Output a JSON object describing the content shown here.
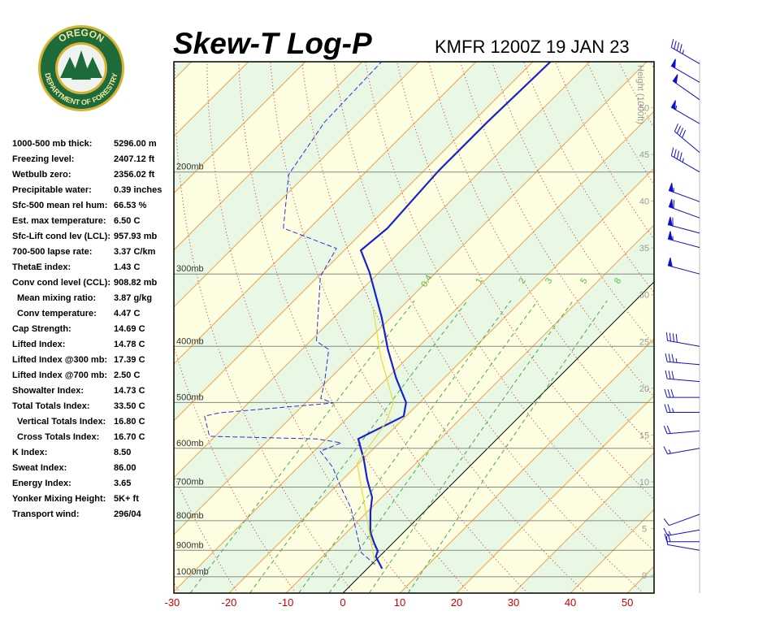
{
  "logo": {
    "top": "OREGON",
    "bottom": "DEPARTMENT OF FORESTRY"
  },
  "stats": [
    {
      "label": "1000-500 mb thick:",
      "value": "5296.00 m"
    },
    {
      "label": "Freezing level:",
      "value": "2407.12 ft"
    },
    {
      "label": "Wetbulb zero:",
      "value": "2356.02 ft"
    },
    {
      "label": "Precipitable water:",
      "value": "0.39 inches"
    },
    {
      "label": "Sfc-500 mean rel hum:",
      "value": "66.53 %"
    },
    {
      "label": "Est. max temperature:",
      "value": "6.50 C"
    },
    {
      "label": "Sfc-Lift cond lev (LCL):",
      "value": "957.93 mb"
    },
    {
      "label": "700-500 lapse rate:",
      "value": "3.37 C/km"
    },
    {
      "label": "ThetaE index:",
      "value": "1.43 C"
    },
    {
      "label": "Conv cond level (CCL):",
      "value": "908.82 mb"
    },
    {
      "label": "Mean mixing ratio:",
      "value": "3.87 g/kg"
    },
    {
      "label": "Conv temperature:",
      "value": "4.47 C"
    },
    {
      "label": "Cap Strength:",
      "value": "14.69 C"
    },
    {
      "label": "Lifted Index:",
      "value": "14.78 C"
    },
    {
      "label": "Lifted Index @300 mb:",
      "value": "17.39 C"
    },
    {
      "label": "Lifted Index @700 mb:",
      "value": "2.50 C"
    },
    {
      "label": "Showalter Index:",
      "value": "14.73 C"
    },
    {
      "label": "Total Totals Index:",
      "value": "33.50 C"
    },
    {
      "label": "Vertical Totals Index:",
      "value": "16.80 C"
    },
    {
      "label": "Cross Totals Index:",
      "value": "16.70 C"
    },
    {
      "label": "K Index:",
      "value": "8.50"
    },
    {
      "label": "Sweat Index:",
      "value": "86.00"
    },
    {
      "label": "Energy Index:",
      "value": "3.65"
    },
    {
      "label": "Yonker Mixing Height:",
      "value": "5K+ ft"
    },
    {
      "label": "Transport wind:",
      "value": "296/04"
    }
  ],
  "chart_data": {
    "type": "skewt",
    "title": "Skew-T Log-P",
    "subtitle": "KMFR 1200Z 19 JAN 23",
    "xlim": [
      -29.7,
      54.7
    ],
    "xticks": [
      -30,
      -20,
      -10,
      0,
      10,
      20,
      30,
      40,
      50
    ],
    "ylim": [
      1067,
      129
    ],
    "yticks": [
      {
        "value": 1000,
        "label": "1000mb"
      },
      {
        "value": 900,
        "label": "900mb"
      },
      {
        "value": 800,
        "label": "800mb"
      },
      {
        "value": 700,
        "label": "700mb"
      },
      {
        "value": 600,
        "label": "600mb"
      },
      {
        "value": 500,
        "label": "500mb"
      },
      {
        "value": 400,
        "label": "400mb"
      },
      {
        "value": 300,
        "label": "300mb"
      },
      {
        "value": 200,
        "label": "200mb"
      }
    ],
    "height_axis": {
      "label": "Height (1000ft)",
      "lim": [
        -1.9,
        54.9
      ],
      "ticks": [
        0,
        5,
        10,
        15,
        20,
        25,
        30,
        35,
        40,
        45,
        50
      ]
    },
    "mixing_ratio_lines": [
      0.4,
      1,
      2,
      3,
      5,
      8
    ],
    "series": [
      {
        "color": "#1a22cc",
        "style": "solid",
        "pressure": [
          968,
          923,
          902,
          873,
          837,
          773,
          729,
          679,
          626,
          578,
          528,
          500,
          454,
          405,
          356,
          298,
          273,
          250,
          199,
          164,
          129
        ],
        "values": [
          2.6,
          -0.6,
          -1.3,
          -3.4,
          -5.9,
          -9.4,
          -11.7,
          -15.7,
          -19.9,
          -24.4,
          -20.4,
          -22.4,
          -28.4,
          -34.9,
          -41.7,
          -51.7,
          -57.1,
          -56.3,
          -57.4,
          -57.4,
          -56.9
        ]
      },
      {
        "color": "#2a30d8",
        "style": "dashed",
        "pressure": [
          953,
          908,
          760,
          701,
          647,
          607,
          587,
          578,
          572,
          528,
          521,
          501,
          492,
          461,
          405,
          392,
          303,
          271,
          250,
          202,
          164,
          129
        ],
        "values": [
          0.7,
          -3.9,
          -13.6,
          -18.9,
          -23.9,
          -28.9,
          -26.7,
          -31.7,
          -51,
          -55.4,
          -53.4,
          -35.1,
          -38.1,
          -40.3,
          -45.3,
          -48.9,
          -59.6,
          -61.7,
          -74.6,
          -83.1,
          -86,
          -86.6
        ]
      },
      {
        "color": "#e6dc3c",
        "style": "thin",
        "pressure": [
          953,
          637,
          542,
          500,
          419,
          345
        ],
        "values": [
          0.7,
          -20.3,
          -22.4,
          -24.6,
          -34.6,
          -44.6
        ]
      }
    ],
    "winds": {
      "color": "#1010cc",
      "pressure": [
        130,
        140,
        150,
        165,
        185,
        200,
        225,
        240,
        255,
        270,
        300,
        400,
        430,
        460,
        490,
        520,
        560,
        600,
        780,
        830,
        870,
        900
      ],
      "direction": [
        300,
        300,
        305,
        300,
        310,
        300,
        290,
        290,
        285,
        285,
        285,
        280,
        275,
        275,
        270,
        270,
        265,
        260,
        250,
        260,
        270,
        280
      ],
      "speed": [
        45,
        50,
        50,
        55,
        40,
        45,
        55,
        60,
        60,
        55,
        50,
        40,
        35,
        30,
        30,
        25,
        20,
        15,
        10,
        15,
        20,
        10
      ]
    }
  }
}
